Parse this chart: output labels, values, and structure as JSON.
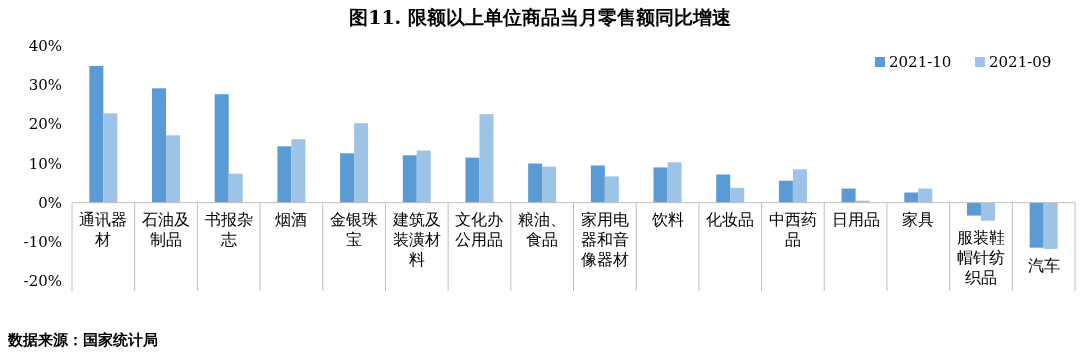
{
  "chart_data": {
    "type": "bar",
    "title": "图11.  限额以上单位商品当月零售额同比增速",
    "categories": [
      "通讯器材",
      "石油及制品",
      "书报杂志",
      "烟酒",
      "金银珠宝",
      "建筑及装潢材料",
      "文化办公用品",
      "粮油、食品",
      "家用电器和音像器材",
      "饮料",
      "化妆品",
      "中西药品",
      "日用品",
      "家具",
      "服装鞋帽针纺织品",
      "汽车"
    ],
    "series": [
      {
        "name": "2021-10",
        "color": "#5b9bd5",
        "values": [
          34.9,
          29.2,
          27.7,
          14.4,
          12.6,
          12.1,
          11.5,
          10.0,
          9.5,
          9.0,
          7.2,
          5.6,
          3.6,
          2.6,
          -3.3,
          -11.5
        ]
      },
      {
        "name": "2021-09",
        "color": "#9dc3e6",
        "values": [
          22.8,
          17.2,
          7.4,
          16.2,
          20.3,
          13.3,
          22.6,
          9.2,
          6.7,
          10.3,
          3.8,
          8.5,
          0.5,
          3.6,
          -4.6,
          -11.8
        ]
      }
    ],
    "ylim": [
      -20,
      40
    ],
    "yticks": [
      {
        "value": -20,
        "label": "-20%"
      },
      {
        "value": -10,
        "label": "-10%"
      },
      {
        "value": 0,
        "label": "0%"
      },
      {
        "value": 10,
        "label": "10%"
      },
      {
        "value": 20,
        "label": "20%"
      },
      {
        "value": 30,
        "label": "30%"
      },
      {
        "value": 40,
        "label": "40%"
      }
    ],
    "legend": "top right",
    "annotations": [
      "数据来源：国家统计局"
    ]
  }
}
